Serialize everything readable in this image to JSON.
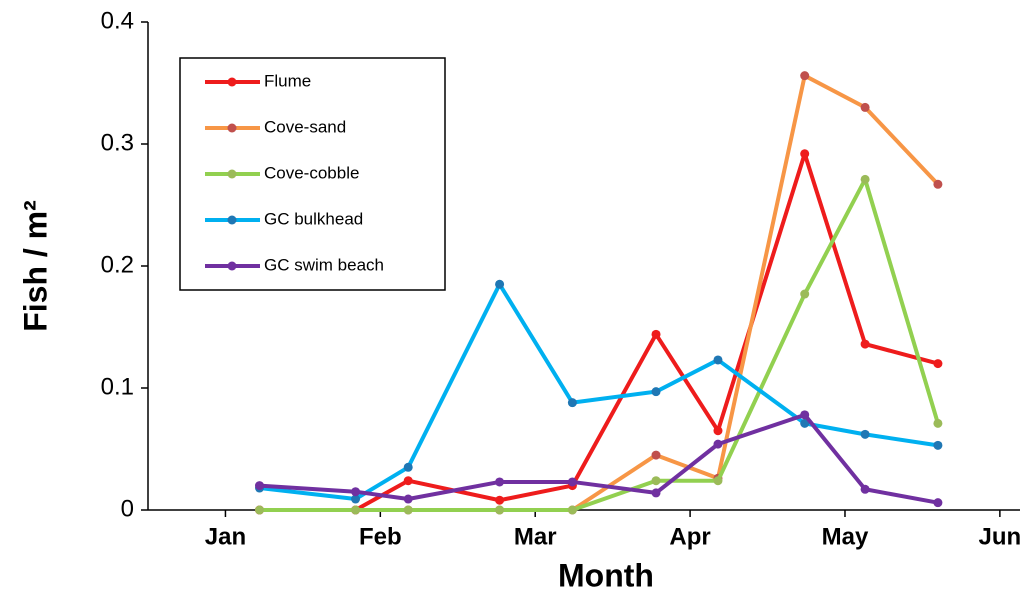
{
  "chart_data": {
    "type": "line",
    "x_label": "Month",
    "y_label": "Fish / m²",
    "x": [
      0.72,
      1.34,
      1.68,
      2.27,
      2.74,
      3.28,
      3.68,
      4.24,
      4.63,
      5.1
    ],
    "xlim": [
      0,
      5.63
    ],
    "xticks": [
      {
        "value": 0.5,
        "label": "Jan"
      },
      {
        "value": 1.5,
        "label": "Feb"
      },
      {
        "value": 2.5,
        "label": "Mar"
      },
      {
        "value": 3.5,
        "label": "Apr"
      },
      {
        "value": 4.5,
        "label": "May"
      },
      {
        "value": 5.5,
        "label": "Jun"
      }
    ],
    "ylim": [
      0,
      0.4
    ],
    "yticks": [
      0,
      0.1,
      0.2,
      0.3,
      0.4
    ],
    "legend": "upper left",
    "series": [
      {
        "name": "Flume",
        "color": "#ee1c1c",
        "marker_color": "#ee1c1c",
        "values": [
          0,
          0,
          0.024,
          0.008,
          0.02,
          0.144,
          0.065,
          0.292,
          0.136,
          0.12
        ]
      },
      {
        "name": "Cove-sand",
        "color": "#f79646",
        "marker_color": "#c0504d",
        "values": [
          0,
          0,
          0,
          0,
          0,
          0.045,
          0.026,
          0.356,
          0.33,
          0.267
        ]
      },
      {
        "name": "Cove-cobble",
        "color": "#92d050",
        "marker_color": "#9bbb59",
        "values": [
          0,
          0,
          0,
          0,
          0,
          0.024,
          0.024,
          0.177,
          0.271,
          0.071
        ]
      },
      {
        "name": "GC bulkhead",
        "color": "#00b0f0",
        "marker_color": "#1f77b4",
        "values": [
          0.018,
          0.009,
          0.035,
          0.185,
          0.088,
          0.097,
          0.123,
          0.071,
          0.062,
          0.053
        ]
      },
      {
        "name": "GC swim beach",
        "color": "#7030a0",
        "marker_color": "#7030a0",
        "values": [
          0.02,
          0.015,
          0.009,
          0.023,
          0.023,
          0.014,
          0.054,
          0.078,
          0.017,
          0.006
        ]
      }
    ]
  }
}
